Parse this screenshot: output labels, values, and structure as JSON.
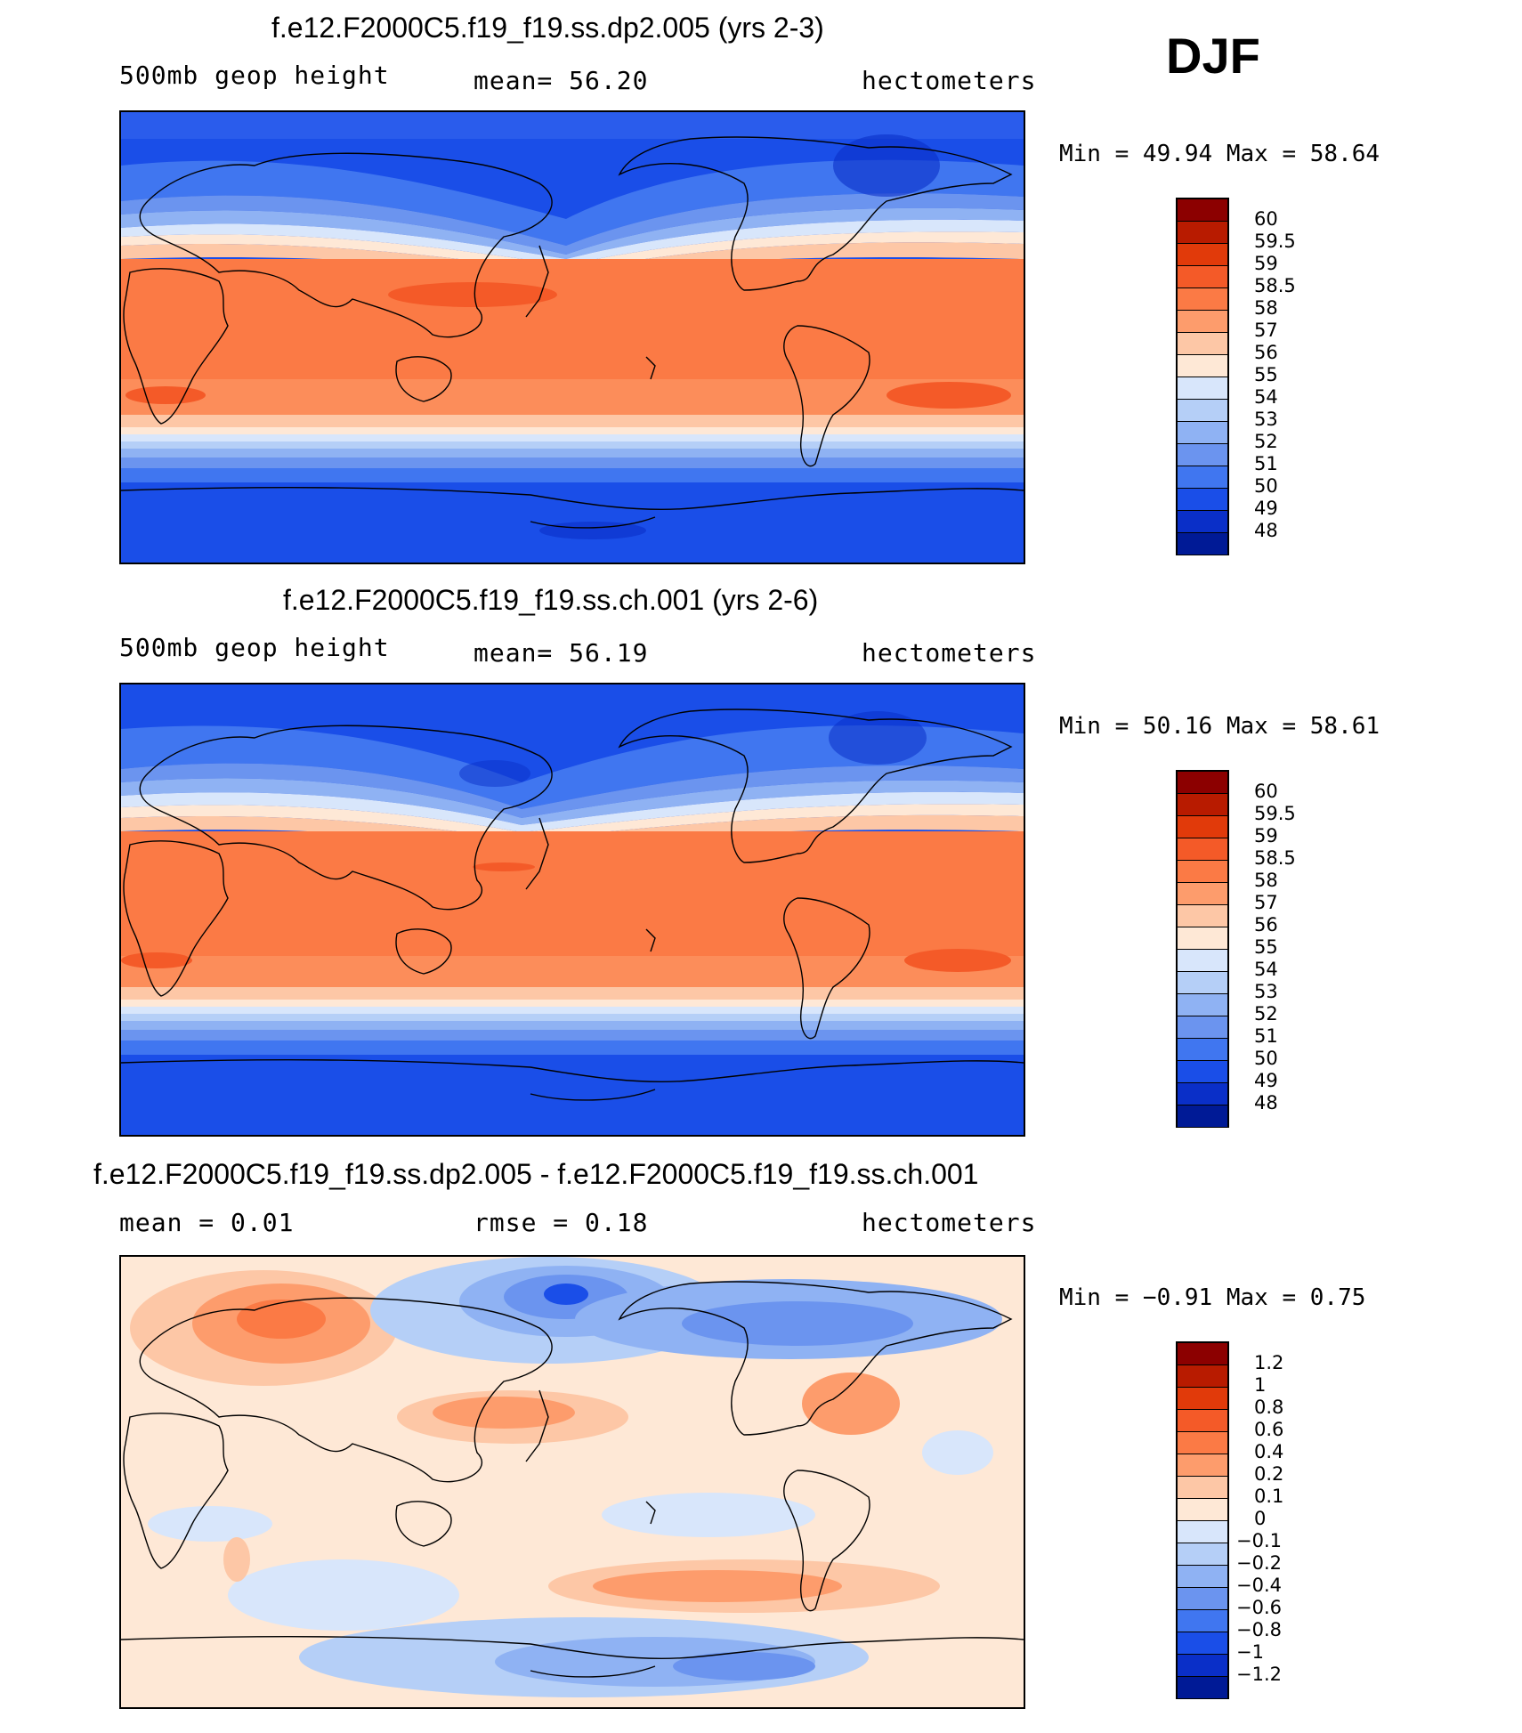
{
  "season": "DJF",
  "chart_data": [
    {
      "type": "heatmap",
      "title": "f.e12.F2000C5.f19_f19.ss.dp2.005 (yrs 2-3)",
      "left_label": "500mb geop height",
      "center_label": "mean=   56.20",
      "units": "hectometers",
      "minmax_text": "Min =   49.94 Max =   58.64",
      "min": 49.94,
      "max": 58.64,
      "mean": 56.2,
      "colorbar_labels": [
        "60",
        "59.5",
        "59",
        "58.5",
        "58",
        "57",
        "56",
        "55",
        "54",
        "53",
        "52",
        "51",
        "50",
        "49",
        "48"
      ],
      "colorbar_colors": [
        "#8c0000",
        "#b81b00",
        "#e13a0a",
        "#f45a28",
        "#fb7a45",
        "#fd9c6c",
        "#fdc7a6",
        "#fee8d6",
        "#d8e6fb",
        "#b5cff7",
        "#8fb2f3",
        "#6b94ef",
        "#4076f0",
        "#1a4ee8",
        "#0a2fc8",
        "#001a96"
      ],
      "annotations": []
    },
    {
      "type": "heatmap",
      "title": "f.e12.F2000C5.f19_f19.ss.ch.001 (yrs 2-6)",
      "left_label": "500mb geop height",
      "center_label": "mean=   56.19",
      "units": "hectometers",
      "minmax_text": "Min =   50.16 Max =   58.61",
      "min": 50.16,
      "max": 58.61,
      "mean": 56.19,
      "colorbar_labels": [
        "60",
        "59.5",
        "59",
        "58.5",
        "58",
        "57",
        "56",
        "55",
        "54",
        "53",
        "52",
        "51",
        "50",
        "49",
        "48"
      ],
      "colorbar_colors": [
        "#8c0000",
        "#b81b00",
        "#e13a0a",
        "#f45a28",
        "#fb7a45",
        "#fd9c6c",
        "#fdc7a6",
        "#fee8d6",
        "#d8e6fb",
        "#b5cff7",
        "#8fb2f3",
        "#6b94ef",
        "#4076f0",
        "#1a4ee8",
        "#0a2fc8",
        "#001a96"
      ],
      "annotations": []
    },
    {
      "type": "heatmap",
      "title": "f.e12.F2000C5.f19_f19.ss.dp2.005 - f.e12.F2000C5.f19_f19.ss.ch.001",
      "left_label": "mean =    0.01",
      "center_label": "rmse =    0.18",
      "units": "hectometers",
      "minmax_text": "Min =  −0.91 Max =    0.75",
      "min": -0.91,
      "max": 0.75,
      "mean": 0.01,
      "rmse": 0.18,
      "colorbar_labels": [
        "1.2",
        "1",
        "0.8",
        "0.6",
        "0.4",
        "0.2",
        "0.1",
        "0",
        "−0.1",
        "−0.2",
        "−0.4",
        "−0.6",
        "−0.8",
        "−1",
        "−1.2"
      ],
      "colorbar_colors": [
        "#8c0000",
        "#b81b00",
        "#e13a0a",
        "#f45a28",
        "#fb7a45",
        "#fd9c6c",
        "#fdc7a6",
        "#fee8d6",
        "#d8e6fb",
        "#b5cff7",
        "#8fb2f3",
        "#6b94ef",
        "#4076f0",
        "#1a4ee8",
        "#0a2fc8",
        "#001a96"
      ],
      "annotations": []
    }
  ]
}
